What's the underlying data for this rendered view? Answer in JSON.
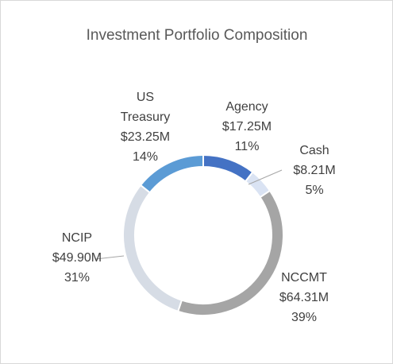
{
  "chart_data": {
    "type": "donut",
    "title": "Investment Portfolio Composition",
    "categories": [
      "Agency",
      "Cash",
      "NCCMT",
      "NCIP",
      "US Treasury"
    ],
    "values": [
      17.25,
      8.21,
      64.31,
      49.9,
      23.25
    ],
    "value_labels": [
      "$17.25M",
      "$8.21M",
      "$64.31M",
      "$49.90M",
      "$23.25M"
    ],
    "percentages": [
      11,
      5,
      39,
      31,
      14
    ],
    "percentage_labels": [
      "11%",
      "5%",
      "39%",
      "31%",
      "14%"
    ],
    "colors": [
      "#4472c4",
      "#dae3f3",
      "#a5a5a5",
      "#d6dce5",
      "#5b9bd5"
    ]
  }
}
